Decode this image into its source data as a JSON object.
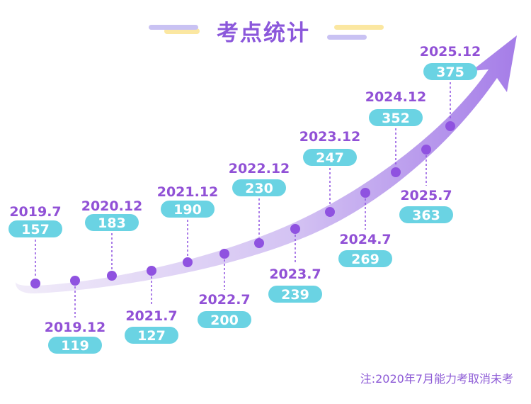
{
  "title": "考点统计",
  "note": "注:2020年7月能力考取消未考",
  "colors": {
    "accent": "#8b57db",
    "point": "#8f52e0",
    "badge": "#6ad3e3",
    "curve_start": "#f1ecf9",
    "curve_end": "#a57de8",
    "deco_yellow": "#fbe7a1",
    "deco_purple": "#c9c2f3"
  },
  "chart_data": {
    "type": "line",
    "x": [
      "2019.7",
      "2019.12",
      "2020.12",
      "2021.7",
      "2021.12",
      "2022.7",
      "2022.12",
      "2023.7",
      "2023.12",
      "2024.7",
      "2024.12",
      "2025.7",
      "2025.12"
    ],
    "values": [
      157,
      119,
      183,
      127,
      190,
      200,
      230,
      239,
      247,
      269,
      352,
      363,
      375
    ],
    "title": "考点统计",
    "annotation": "注:2020年7月能力考取消未考",
    "grid": false,
    "legend": "none"
  }
}
